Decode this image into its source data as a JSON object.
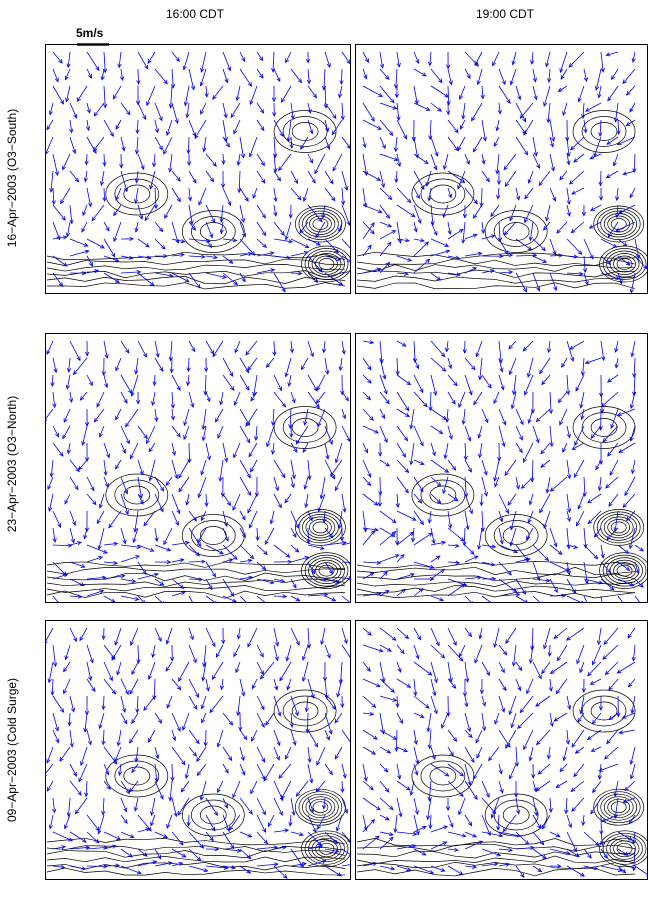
{
  "figure": {
    "columns": [
      "16:00 CDT",
      "19:00 CDT"
    ],
    "rows": [
      "16−Apr−2003 (O3−South)",
      "23−Apr−2003 (O3−North)",
      "09−Apr−2003 (Cold Surge)"
    ],
    "scale_label": "5m/s",
    "colors": {
      "vectors": "#0000ee",
      "contours": "#000000",
      "scale_bar": "#ee0000"
    }
  }
}
